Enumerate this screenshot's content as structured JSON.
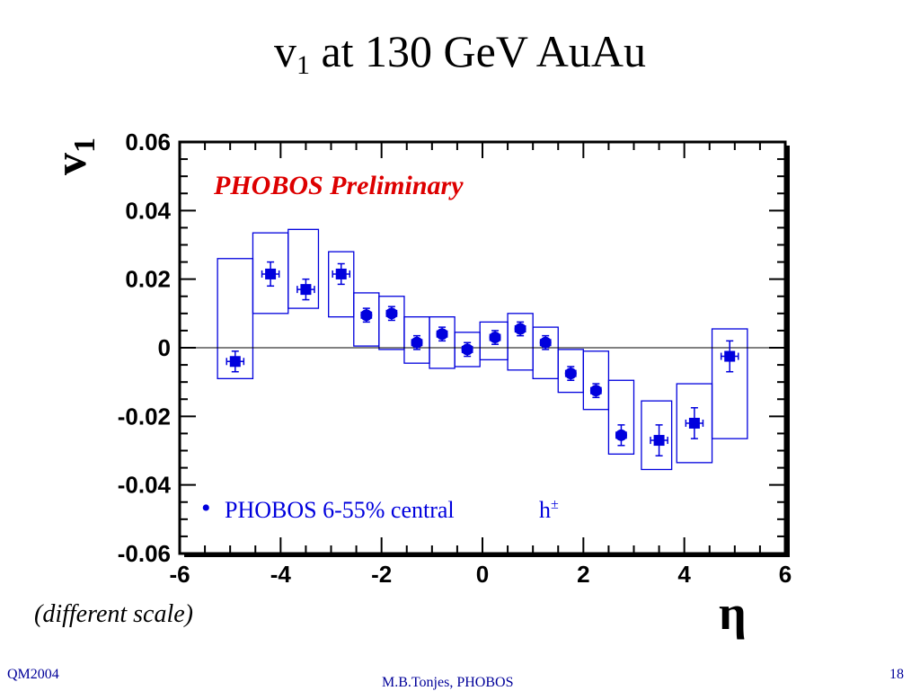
{
  "slide": {
    "title_main": "v",
    "title_sub": "1",
    "title_rest": " at 130 GeV AuAu",
    "note": "(different scale)",
    "footer_left": "QM2004",
    "footer_center": "M.B.Tonjes, PHOBOS",
    "footer_right": "18"
  },
  "chart_data": {
    "type": "scatter",
    "xlabel": "η",
    "ylabel_main": "v",
    "ylabel_sub": "1",
    "xlim": [
      -6,
      6
    ],
    "ylim": [
      -0.06,
      0.06
    ],
    "x_ticks": [
      -6,
      -4,
      -2,
      0,
      2,
      4,
      6
    ],
    "x_tick_labels": [
      "-6",
      "-4",
      "-2",
      "0",
      "2",
      "4",
      "6"
    ],
    "y_ticks": [
      -0.06,
      -0.04,
      -0.02,
      0,
      0.02,
      0.04,
      0.06
    ],
    "y_tick_labels": [
      "-0.06",
      "-0.04",
      "-0.02",
      "0",
      "0.02",
      "0.04",
      "0.06"
    ],
    "annotation": "PHOBOS Preliminary",
    "annotation_color": "#dd0000",
    "zero_line": true,
    "legend": {
      "marker": "•",
      "label": "PHOBOS 6-55% central",
      "particle": "h",
      "particle_sup": "±",
      "placement": "bottom-left",
      "color": "#0000dd"
    },
    "series": [
      {
        "marker": "square",
        "color": "#0000dd",
        "points": [
          {
            "x": -4.9,
            "y": -0.004,
            "err": 0.003,
            "xerr": 0.17,
            "sys_low": -0.009,
            "sys_high": 0.026,
            "sys_x0": -5.25,
            "sys_x1": -4.55
          },
          {
            "x": -4.2,
            "y": 0.0215,
            "err": 0.0035,
            "xerr": 0.17,
            "sys_low": 0.01,
            "sys_high": 0.0335,
            "sys_x0": -4.55,
            "sys_x1": -3.85
          },
          {
            "x": -3.5,
            "y": 0.017,
            "err": 0.003,
            "xerr": 0.17,
            "sys_low": 0.0115,
            "sys_high": 0.0345,
            "sys_x0": -3.85,
            "sys_x1": -3.25
          },
          {
            "x": -2.8,
            "y": 0.0215,
            "err": 0.003,
            "xerr": 0.17,
            "sys_low": 0.009,
            "sys_high": 0.028,
            "sys_x0": -3.05,
            "sys_x1": -2.55
          },
          {
            "x": 4.2,
            "y": -0.022,
            "err": 0.0045,
            "xerr": 0.17,
            "sys_low": -0.0335,
            "sys_high": -0.0105,
            "sys_x0": 3.85,
            "sys_x1": 4.55
          },
          {
            "x": 4.9,
            "y": -0.0025,
            "err": 0.0045,
            "xerr": 0.17,
            "sys_low": -0.0265,
            "sys_high": 0.0055,
            "sys_x0": 4.55,
            "sys_x1": 5.25
          },
          {
            "x": 3.5,
            "y": -0.027,
            "err": 0.0045,
            "xerr": 0.17,
            "sys_low": -0.0355,
            "sys_high": -0.0155,
            "sys_x0": 3.15,
            "sys_x1": 3.75
          }
        ]
      },
      {
        "marker": "circle",
        "color": "#0000dd",
        "points": [
          {
            "x": -2.3,
            "y": 0.0095,
            "err": 0.002,
            "xerr": 0.1,
            "sys_low": 0.0005,
            "sys_high": 0.016,
            "sys_x0": -2.55,
            "sys_x1": -2.05
          },
          {
            "x": -1.8,
            "y": 0.01,
            "err": 0.002,
            "xerr": 0.1,
            "sys_low": -0.0005,
            "sys_high": 0.015,
            "sys_x0": -2.05,
            "sys_x1": -1.55
          },
          {
            "x": -1.3,
            "y": 0.0015,
            "err": 0.002,
            "xerr": 0.1,
            "sys_low": -0.0045,
            "sys_high": 0.009,
            "sys_x0": -1.55,
            "sys_x1": -1.05
          },
          {
            "x": -0.8,
            "y": 0.004,
            "err": 0.002,
            "xerr": 0.1,
            "sys_low": -0.006,
            "sys_high": 0.009,
            "sys_x0": -1.05,
            "sys_x1": -0.55
          },
          {
            "x": -0.3,
            "y": -0.0005,
            "err": 0.002,
            "xerr": 0.1,
            "sys_low": -0.0055,
            "sys_high": 0.0045,
            "sys_x0": -0.55,
            "sys_x1": -0.05
          },
          {
            "x": 0.25,
            "y": 0.003,
            "err": 0.002,
            "xerr": 0.1,
            "sys_low": -0.0035,
            "sys_high": 0.0075,
            "sys_x0": -0.05,
            "sys_x1": 0.5
          },
          {
            "x": 0.75,
            "y": 0.0055,
            "err": 0.002,
            "xerr": 0.1,
            "sys_low": -0.0065,
            "sys_high": 0.01,
            "sys_x0": 0.5,
            "sys_x1": 1.0
          },
          {
            "x": 1.25,
            "y": 0.0015,
            "err": 0.002,
            "xerr": 0.1,
            "sys_low": -0.009,
            "sys_high": 0.006,
            "sys_x0": 1.0,
            "sys_x1": 1.5
          },
          {
            "x": 1.75,
            "y": -0.0075,
            "err": 0.002,
            "xerr": 0.1,
            "sys_low": -0.013,
            "sys_high": -0.0005,
            "sys_x0": 1.5,
            "sys_x1": 2.0
          },
          {
            "x": 2.25,
            "y": -0.0125,
            "err": 0.002,
            "xerr": 0.1,
            "sys_low": -0.018,
            "sys_high": -0.001,
            "sys_x0": 2.0,
            "sys_x1": 2.5
          },
          {
            "x": 2.75,
            "y": -0.0255,
            "err": 0.003,
            "xerr": 0.1,
            "sys_low": -0.031,
            "sys_high": -0.0095,
            "sys_x0": 2.5,
            "sys_x1": 3.0
          }
        ]
      }
    ]
  }
}
